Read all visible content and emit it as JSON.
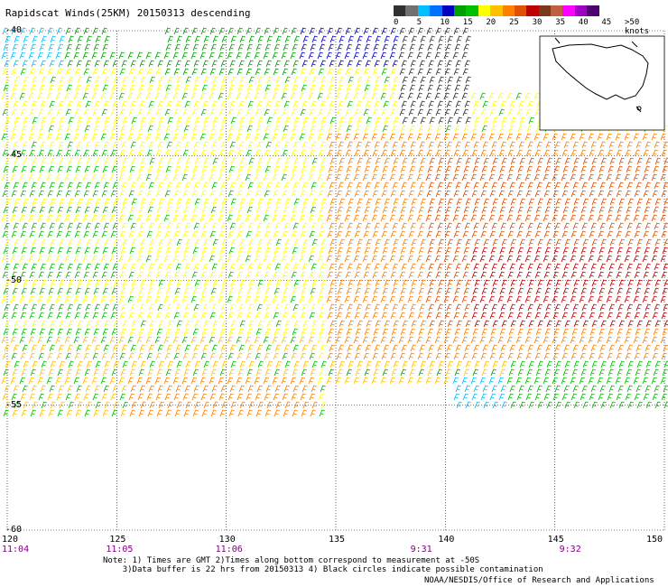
{
  "title": "Rapidscat Winds(25KM) 20150313 descending",
  "legend": {
    "colors": [
      "#303030",
      "#707070",
      "#00c0ff",
      "#0070ff",
      "#0000c0",
      "#00a000",
      "#00c000",
      "#ffff00",
      "#ffc000",
      "#ff8000",
      "#e05000",
      "#c00000",
      "#7a3a1a",
      "#c06040",
      "#ff00ff",
      "#a000c0",
      "#500070"
    ],
    "ticks": [
      "0",
      "5",
      "10",
      "15",
      "20",
      "25",
      "30",
      "35",
      "40",
      "45",
      ">50 knots"
    ]
  },
  "chart_data": {
    "type": "map",
    "lat_range": [
      -60,
      -40
    ],
    "lon_range": [
      120,
      150
    ],
    "lat_labels": [
      "-40",
      "-45",
      "-50",
      "-55",
      "-60"
    ],
    "lon_labels": [
      "120",
      "125",
      "130",
      "135",
      "140",
      "145",
      "150"
    ],
    "time_labels": [
      "11:04",
      "11:05",
      "11:06",
      "9:31",
      "9:32"
    ],
    "time_positions_lon": [
      120,
      125,
      130,
      138.9,
      145.7
    ],
    "grid": true
  },
  "notes": {
    "line1": "Note: 1) Times are GMT 2)Times along bottom correspond to measurement at -50S",
    "line2": "3)Data buffer is 22 hrs from 20150313 4) Black circles indicate possible contamination"
  },
  "credit": "NOAA/NESDIS/Office of Research and Applications"
}
